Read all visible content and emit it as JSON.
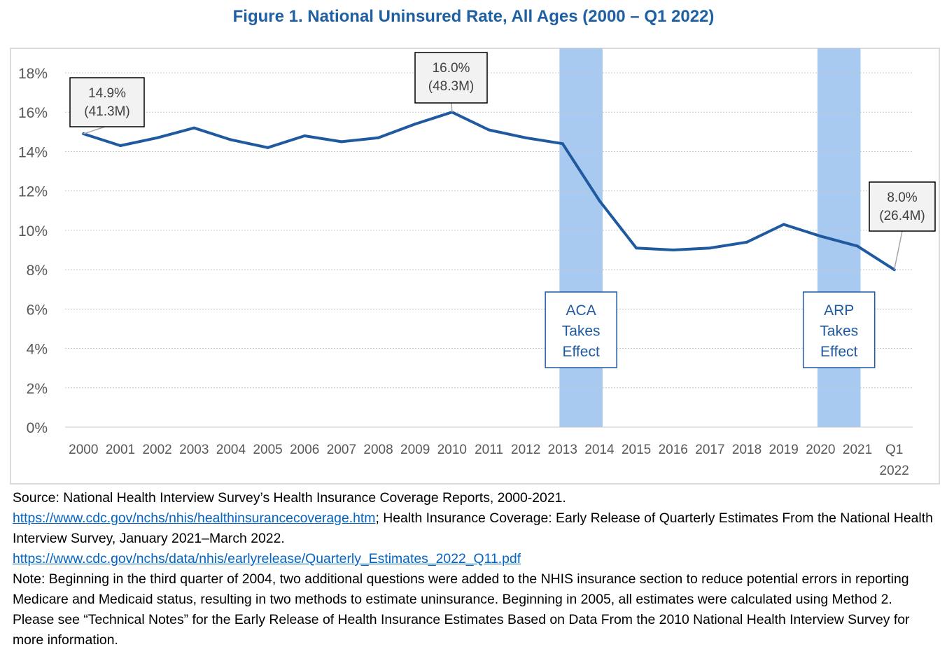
{
  "chart_data": {
    "type": "line",
    "title": "Figure 1. National Uninsured Rate, All Ages (2000 – Q1 2022)",
    "xlabel": "",
    "ylabel": "",
    "ylim": [
      0,
      18
    ],
    "yticks": [
      "0%",
      "2%",
      "4%",
      "6%",
      "8%",
      "10%",
      "12%",
      "14%",
      "16%",
      "18%"
    ],
    "categories": [
      "2000",
      "2001",
      "2002",
      "2003",
      "2004",
      "2005",
      "2006",
      "2007",
      "2008",
      "2009",
      "2010",
      "2011",
      "2012",
      "2013",
      "2014",
      "2015",
      "2016",
      "2017",
      "2018",
      "2019",
      "2020",
      "2021",
      "Q1 2022"
    ],
    "series": [
      {
        "values": [
          14.9,
          14.3,
          14.7,
          15.2,
          14.6,
          14.2,
          14.8,
          14.5,
          14.7,
          15.4,
          16.0,
          15.1,
          14.7,
          14.4,
          11.5,
          9.1,
          9.0,
          9.1,
          9.4,
          10.3,
          9.7,
          9.2,
          8.0
        ],
        "color": "#1f5aa0"
      }
    ],
    "grid": true,
    "callouts": [
      {
        "index": 0,
        "lines": [
          "14.9%",
          "(41.3M)"
        ]
      },
      {
        "index": 10,
        "lines": [
          "16.0%",
          "(48.3M)"
        ]
      },
      {
        "index": 22,
        "lines": [
          "8.0%",
          "(26.4M)"
        ]
      }
    ],
    "bands": [
      {
        "after_index": 13,
        "lines": [
          "ACA",
          "Takes",
          "Effect"
        ],
        "color": "#a8c9f0"
      },
      {
        "after_index": 20,
        "lines": [
          "ARP",
          "Takes",
          "Effect"
        ],
        "color": "#a8c9f0"
      }
    ]
  },
  "source": {
    "line1": "Source: National Health Interview Survey’s Health Insurance Coverage Reports, 2000-2021.",
    "link1": "https://www.cdc.gov/nchs/nhis/healthinsurancecoverage.htm",
    "line2_rest": "; Health Insurance Coverage: Early Release of Quarterly Estimates From the National Health Interview Survey, January 2021–March 2022.",
    "link2": "https://www.cdc.gov/nchs/data/nhis/earlyrelease/Quarterly_Estimates_2022_Q11.pdf",
    "note": "Note: Beginning in the third quarter of 2004, two additional questions were added to the NHIS insurance section to reduce potential errors in reporting Medicare and Medicaid status, resulting in two methods to estimate uninsurance. Beginning in 2005, all estimates were calculated using Method 2. Please see “Technical Notes” for the Early Release of Health Insurance Estimates Based on Data From the 2010 National Health Interview Survey for more information."
  },
  "colors": {
    "title": "#1f5fa3",
    "line": "#1f5aa0",
    "band": "#a8c9f0",
    "axis_text": "#595959",
    "grid": "#c8c8c8"
  }
}
